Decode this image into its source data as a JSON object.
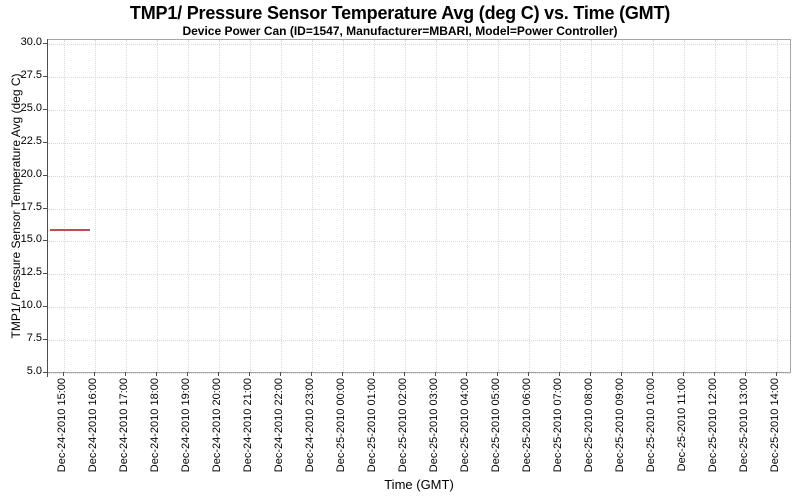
{
  "chart_data": {
    "type": "line",
    "title": "TMP1/ Pressure Sensor Temperature Avg (deg C) vs. Time (GMT)",
    "subtitle": "Device Power Can (ID=1547, Manufacturer=MBARI, Model=Power Controller)",
    "xlabel": "Time (GMT)",
    "ylabel": "TMP1/ Pressure Sensor Temperature Avg (deg C)",
    "ylim": [
      5.0,
      30.0
    ],
    "grid": true,
    "legend": "none",
    "y_ticks": [
      {
        "value": 30.0,
        "label": "30.0"
      },
      {
        "value": 27.5,
        "label": "27.5"
      },
      {
        "value": 25.0,
        "label": "25.0"
      },
      {
        "value": 22.5,
        "label": "22.5"
      },
      {
        "value": 20.0,
        "label": "20.0"
      },
      {
        "value": 17.5,
        "label": "17.5"
      },
      {
        "value": 15.0,
        "label": "15.0"
      },
      {
        "value": 12.5,
        "label": "12.5"
      },
      {
        "value": 10.0,
        "label": "10.0"
      },
      {
        "value": 7.5,
        "label": "7.5"
      },
      {
        "value": 5.0,
        "label": "5.0"
      }
    ],
    "x_domain_hours": [
      14.5,
      38.5
    ],
    "x_ticks": [
      {
        "hour": 15,
        "label": "Dec-24-2010 15:00"
      },
      {
        "hour": 16,
        "label": "Dec-24-2010 16:00"
      },
      {
        "hour": 17,
        "label": "Dec-24-2010 17:00"
      },
      {
        "hour": 18,
        "label": "Dec-24-2010 18:00"
      },
      {
        "hour": 19,
        "label": "Dec-24-2010 19:00"
      },
      {
        "hour": 20,
        "label": "Dec-24-2010 20:00"
      },
      {
        "hour": 21,
        "label": "Dec-24-2010 21:00"
      },
      {
        "hour": 22,
        "label": "Dec-24-2010 22:00"
      },
      {
        "hour": 23,
        "label": "Dec-24-2010 23:00"
      },
      {
        "hour": 24,
        "label": "Dec-25-2010 00:00"
      },
      {
        "hour": 25,
        "label": "Dec-25-2010 01:00"
      },
      {
        "hour": 26,
        "label": "Dec-25-2010 02:00"
      },
      {
        "hour": 27,
        "label": "Dec-25-2010 03:00"
      },
      {
        "hour": 28,
        "label": "Dec-25-2010 04:00"
      },
      {
        "hour": 29,
        "label": "Dec-25-2010 05:00"
      },
      {
        "hour": 30,
        "label": "Dec-25-2010 06:00"
      },
      {
        "hour": 31,
        "label": "Dec-25-2010 07:00"
      },
      {
        "hour": 32,
        "label": "Dec-25-2010 08:00"
      },
      {
        "hour": 33,
        "label": "Dec-25-2010 09:00"
      },
      {
        "hour": 34,
        "label": "Dec-25-2010 10:00"
      },
      {
        "hour": 35,
        "label": "Dec-25-2010 11:00"
      },
      {
        "hour": 36,
        "label": "Dec-25-2010 12:00"
      },
      {
        "hour": 37,
        "label": "Dec-25-2010 13:00"
      },
      {
        "hour": 38,
        "label": "Dec-25-2010 14:00"
      }
    ],
    "series": [
      {
        "name": "TMP1/ Pressure Sensor Temperature Avg",
        "color": "#c84b4b",
        "points": [
          {
            "time": "Dec-24-2010 14:33",
            "hour": 14.55,
            "value": 15.9
          },
          {
            "time": "Dec-24-2010 15:50",
            "hour": 15.84,
            "value": 15.9
          }
        ]
      }
    ],
    "colors": {
      "series": "#c84b4b",
      "gridline": "#d9d9d9",
      "plot_border": "#a6a6a6",
      "axis": "#4d4d4d",
      "text": "#000000"
    }
  }
}
